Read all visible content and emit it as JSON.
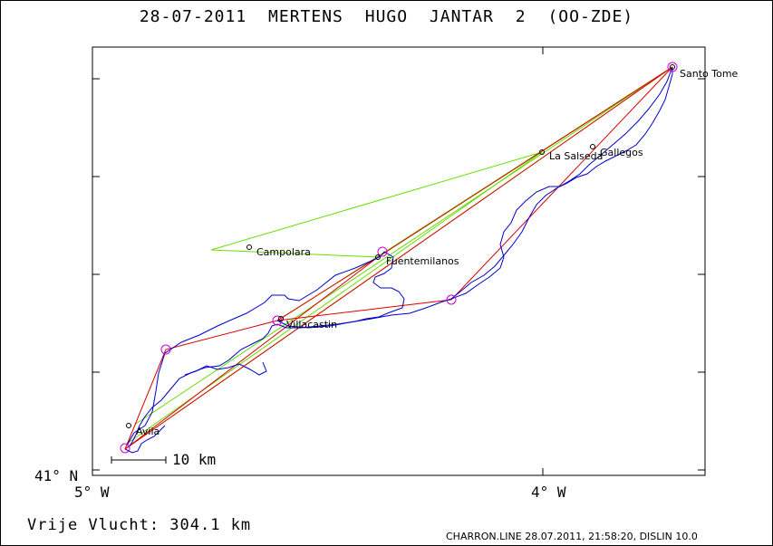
{
  "title": "28-07-2011    MERTENS HUGO    JANTAR 2 (OO-ZDE)",
  "axis": {
    "lat_label": "41° N",
    "lon_left_label": "5° W",
    "lon_right_label": "4° W"
  },
  "scale_bar": "10 km",
  "footer": {
    "distance": "Vrije Vlucht:  304.1 km",
    "credit": "CHARRON.LINE 28.07.2011, 21:58:20, DISLIN 10.0"
  },
  "places": [
    {
      "name": "Santo Tome"
    },
    {
      "name": "La Salseda"
    },
    {
      "name": "Gallegos"
    },
    {
      "name": "Campolara"
    },
    {
      "name": "Fuentemilanos"
    },
    {
      "name": "Villacastin"
    },
    {
      "name": "Avila"
    }
  ],
  "colors": {
    "track": "#0000cc",
    "task_line": "#66dd00",
    "scored_line": "#dd0000",
    "turnpoint": "#cc00cc",
    "frame": "#000000"
  }
}
